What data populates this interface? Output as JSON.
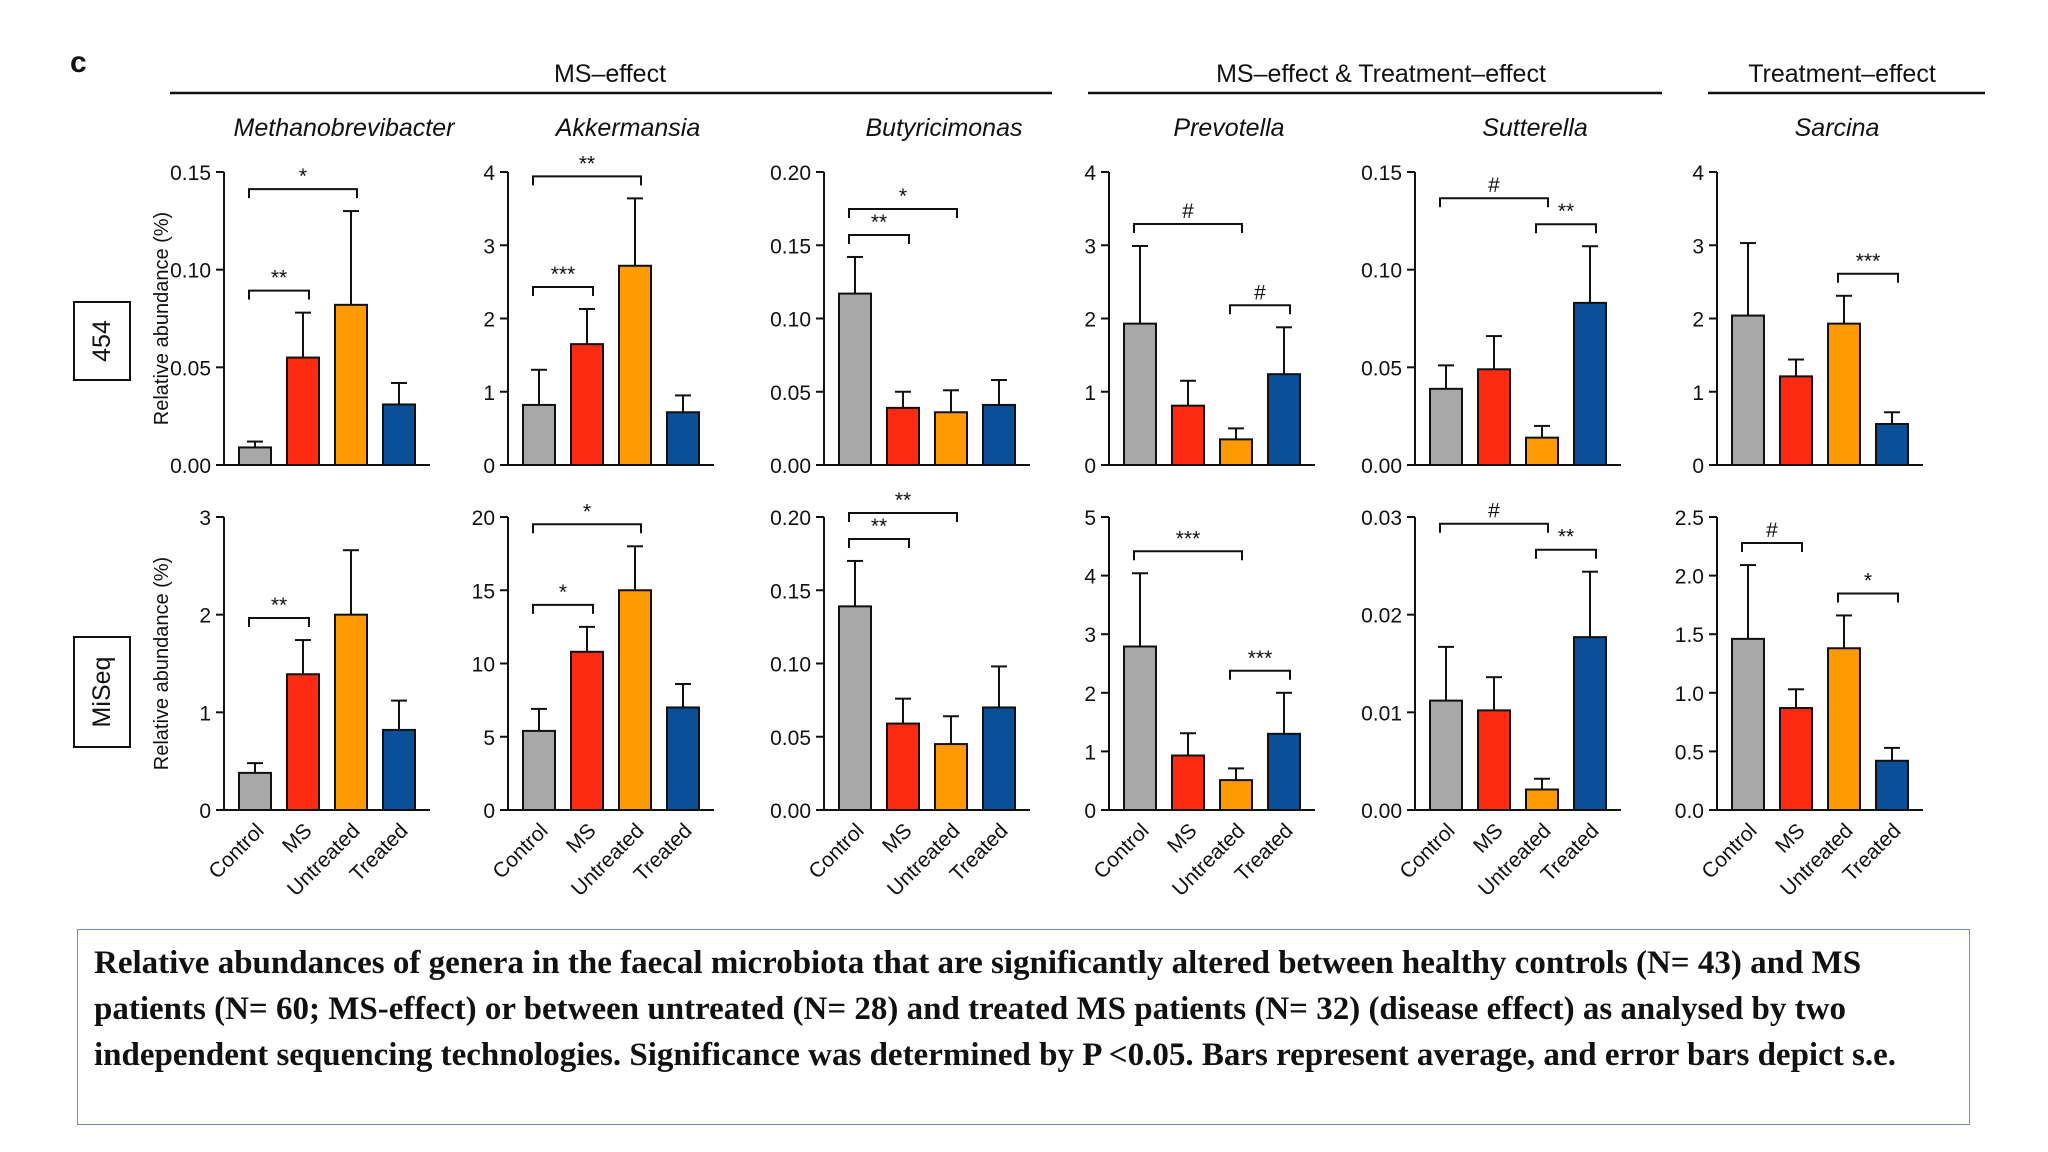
{
  "panel_letter": "c",
  "groups": [
    {
      "label": "MS–effect"
    },
    {
      "label": "MS–effect & Treatment–effect"
    },
    {
      "label": "Treatment–effect"
    }
  ],
  "platforms": [
    "454",
    "MiSeq"
  ],
  "y_axis_label": "Relative abundance (%)",
  "colors": {
    "Control": "#a8a8a8",
    "MS": "#ff2a12",
    "Untreated": "#ff9a05",
    "Treated": "#0a4f98"
  },
  "caption": "Relative abundances of genera in the faecal microbiota that are significantly altered between healthy controls (N= 43) and MS patients (N= 60; MS-effect) or between untreated (N= 28) and treated MS patients (N= 32) (disease effect) as analysed by two independent sequencing technologies. Significance was determined by P <0.05. Bars represent average, and error bars depict s.e.",
  "chart_data": [
    {
      "type": "bar",
      "title": "Methanobrevibacter",
      "platform": "454",
      "categories": [
        "Control",
        "MS",
        "Untreated",
        "Treated"
      ],
      "values": [
        0.009,
        0.055,
        0.082,
        0.031
      ],
      "errors": [
        0.003,
        0.023,
        0.048,
        0.011
      ],
      "ylim": [
        0,
        0.15
      ],
      "yticks": [
        "0.00",
        "0.05",
        "0.10",
        "0.15"
      ],
      "ylabel": "Relative abundance (%)",
      "sig": [
        {
          "from": 0,
          "to": 1,
          "label": "**"
        },
        {
          "from": 0,
          "to": 2,
          "label": "*"
        }
      ]
    },
    {
      "type": "bar",
      "title": "Akkermansia",
      "platform": "454",
      "categories": [
        "Control",
        "MS",
        "Untreated",
        "Treated"
      ],
      "values": [
        0.82,
        1.65,
        2.72,
        0.72
      ],
      "errors": [
        0.48,
        0.48,
        0.92,
        0.23
      ],
      "ylim": [
        0,
        4
      ],
      "yticks": [
        "0",
        "1",
        "2",
        "3",
        "4"
      ],
      "ylabel": "",
      "sig": [
        {
          "from": 0,
          "to": 1,
          "label": "***"
        },
        {
          "from": 0,
          "to": 2,
          "label": "**"
        }
      ]
    },
    {
      "type": "bar",
      "title": "Butyricimonas",
      "platform": "454",
      "categories": [
        "Control",
        "MS",
        "Untreated",
        "Treated"
      ],
      "values": [
        0.117,
        0.039,
        0.036,
        0.041
      ],
      "errors": [
        0.025,
        0.011,
        0.015,
        0.017
      ],
      "ylim": [
        0,
        0.2
      ],
      "yticks": [
        "0.00",
        "0.05",
        "0.10",
        "0.15",
        "0.20"
      ],
      "ylabel": "",
      "sig": [
        {
          "from": 0,
          "to": 1,
          "label": "**"
        },
        {
          "from": 0,
          "to": 2,
          "label": "*"
        }
      ]
    },
    {
      "type": "bar",
      "title": "Prevotella",
      "platform": "454",
      "categories": [
        "Control",
        "MS",
        "Untreated",
        "Treated"
      ],
      "values": [
        1.93,
        0.81,
        0.35,
        1.24
      ],
      "errors": [
        1.06,
        0.34,
        0.15,
        0.64
      ],
      "ylim": [
        0,
        4
      ],
      "yticks": [
        "0",
        "1",
        "2",
        "3",
        "4"
      ],
      "ylabel": "",
      "sig": [
        {
          "from": 0,
          "to": 2,
          "label": "#"
        },
        {
          "from": 2,
          "to": 3,
          "label": "#"
        }
      ]
    },
    {
      "type": "bar",
      "title": "Sutterella",
      "platform": "454",
      "categories": [
        "Control",
        "MS",
        "Untreated",
        "Treated"
      ],
      "values": [
        0.039,
        0.049,
        0.014,
        0.083
      ],
      "errors": [
        0.012,
        0.017,
        0.006,
        0.029
      ],
      "ylim": [
        0,
        0.15
      ],
      "yticks": [
        "0.00",
        "0.05",
        "0.10",
        "0.15"
      ],
      "ylabel": "",
      "sig": [
        {
          "from": 0,
          "to": 2,
          "label": "#"
        },
        {
          "from": 2,
          "to": 3,
          "label": "**"
        }
      ]
    },
    {
      "type": "bar",
      "title": "Sarcina",
      "platform": "454",
      "categories": [
        "Control",
        "MS",
        "Untreated",
        "Treated"
      ],
      "values": [
        2.04,
        1.21,
        1.93,
        0.56
      ],
      "errors": [
        0.99,
        0.23,
        0.38,
        0.16
      ],
      "ylim": [
        0,
        4
      ],
      "yticks": [
        "0",
        "1",
        "2",
        "3",
        "4"
      ],
      "ylabel": "",
      "sig": [
        {
          "from": 2,
          "to": 3,
          "label": "***"
        }
      ]
    },
    {
      "type": "bar",
      "title": "",
      "platform": "MiSeq",
      "categories": [
        "Control",
        "MS",
        "Untreated",
        "Treated"
      ],
      "values": [
        0.38,
        1.39,
        2.0,
        0.82
      ],
      "errors": [
        0.1,
        0.35,
        0.66,
        0.3
      ],
      "ylim": [
        0,
        3
      ],
      "yticks": [
        "0",
        "1",
        "2",
        "3"
      ],
      "ylabel": "Relative abundance (%)",
      "sig": [
        {
          "from": 0,
          "to": 1,
          "label": "**"
        }
      ]
    },
    {
      "type": "bar",
      "title": "",
      "platform": "MiSeq",
      "categories": [
        "Control",
        "MS",
        "Untreated",
        "Treated"
      ],
      "values": [
        5.4,
        10.8,
        15.0,
        7.0
      ],
      "errors": [
        1.5,
        1.7,
        3.0,
        1.6
      ],
      "ylim": [
        0,
        20
      ],
      "yticks": [
        "0",
        "5",
        "10",
        "15",
        "20"
      ],
      "ylabel": "",
      "sig": [
        {
          "from": 0,
          "to": 1,
          "label": "*"
        },
        {
          "from": 0,
          "to": 2,
          "label": "*"
        }
      ]
    },
    {
      "type": "bar",
      "title": "",
      "platform": "MiSeq",
      "categories": [
        "Control",
        "MS",
        "Untreated",
        "Treated"
      ],
      "values": [
        0.139,
        0.059,
        0.045,
        0.07
      ],
      "errors": [
        0.031,
        0.017,
        0.019,
        0.028
      ],
      "ylim": [
        0,
        0.2
      ],
      "yticks": [
        "0.00",
        "0.05",
        "0.10",
        "0.15",
        "0.20"
      ],
      "ylabel": "",
      "sig": [
        {
          "from": 0,
          "to": 1,
          "label": "**"
        },
        {
          "from": 0,
          "to": 2,
          "label": "**"
        }
      ]
    },
    {
      "type": "bar",
      "title": "",
      "platform": "MiSeq",
      "categories": [
        "Control",
        "MS",
        "Untreated",
        "Treated"
      ],
      "values": [
        2.79,
        0.93,
        0.51,
        1.3
      ],
      "errors": [
        1.25,
        0.38,
        0.2,
        0.7
      ],
      "ylim": [
        0,
        5
      ],
      "yticks": [
        "0",
        "1",
        "2",
        "3",
        "4",
        "5"
      ],
      "ylabel": "",
      "sig": [
        {
          "from": 0,
          "to": 2,
          "label": "***"
        },
        {
          "from": 2,
          "to": 3,
          "label": "***"
        }
      ]
    },
    {
      "type": "bar",
      "title": "",
      "platform": "MiSeq",
      "categories": [
        "Control",
        "MS",
        "Untreated",
        "Treated"
      ],
      "values": [
        0.0112,
        0.0102,
        0.0021,
        0.0177
      ],
      "errors": [
        0.0055,
        0.0034,
        0.0011,
        0.0067
      ],
      "ylim": [
        0,
        0.03
      ],
      "yticks": [
        "0.00",
        "0.01",
        "0.02",
        "0.03"
      ],
      "ylabel": "",
      "sig": [
        {
          "from": 0,
          "to": 2,
          "label": "#"
        },
        {
          "from": 2,
          "to": 3,
          "label": "**"
        }
      ]
    },
    {
      "type": "bar",
      "title": "",
      "platform": "MiSeq",
      "categories": [
        "Control",
        "MS",
        "Untreated",
        "Treated"
      ],
      "values": [
        1.46,
        0.87,
        1.38,
        0.42
      ],
      "errors": [
        0.63,
        0.16,
        0.28,
        0.11
      ],
      "ylim": [
        0,
        2.5
      ],
      "yticks": [
        "0.0",
        "0.5",
        "1.0",
        "1.5",
        "2.0",
        "2.5"
      ],
      "ylabel": "",
      "sig": [
        {
          "from": 0,
          "to": 1,
          "label": "#"
        },
        {
          "from": 2,
          "to": 3,
          "label": "*"
        }
      ]
    }
  ]
}
